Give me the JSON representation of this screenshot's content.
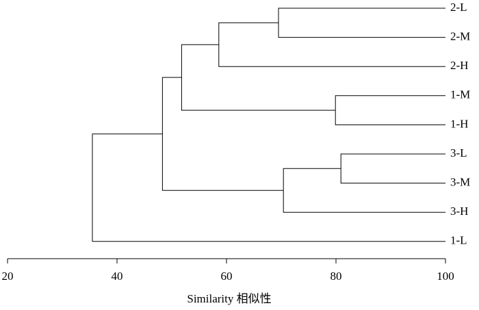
{
  "chart_data": {
    "type": "dendrogram",
    "x_label": "Similarity 相似性",
    "xlim": [
      20,
      100
    ],
    "xticks": [
      20,
      40,
      60,
      80,
      100
    ],
    "color": "#000000",
    "tree": {
      "similarity": 35.5,
      "children": [
        {
          "similarity": 48.3,
          "children": [
            {
              "similarity": 51.8,
              "children": [
                {
                  "similarity": 58.6,
                  "children": [
                    {
                      "similarity": 69.5,
                      "children": [
                        {
                          "label": "2-L"
                        },
                        {
                          "label": "2-M"
                        }
                      ]
                    },
                    {
                      "label": "2-H"
                    }
                  ]
                },
                {
                  "similarity": 79.9,
                  "children": [
                    {
                      "label": "1-M"
                    },
                    {
                      "label": "1-H"
                    }
                  ]
                }
              ]
            },
            {
              "similarity": 70.4,
              "children": [
                {
                  "similarity": 80.9,
                  "children": [
                    {
                      "label": "3-L"
                    },
                    {
                      "label": "3-M"
                    }
                  ]
                },
                {
                  "label": "3-H"
                }
              ]
            }
          ]
        },
        {
          "label": "1-L"
        }
      ]
    }
  }
}
